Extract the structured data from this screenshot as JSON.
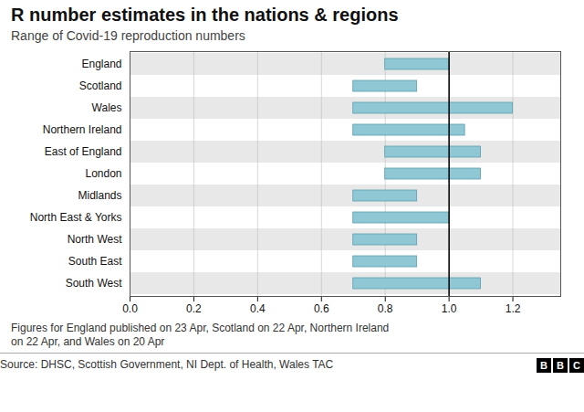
{
  "chart_data": {
    "type": "bar",
    "orientation": "horizontal",
    "title": "R number estimates in the nations & regions",
    "subtitle": "Range of Covid-19 reproduction numbers",
    "categories": [
      "England",
      "Scotland",
      "Wales",
      "Northern Ireland",
      "East of England",
      "London",
      "Midlands",
      "North East & Yorks",
      "North West",
      "South East",
      "South West"
    ],
    "low": [
      0.8,
      0.7,
      0.7,
      0.7,
      0.8,
      0.8,
      0.7,
      0.7,
      0.7,
      0.7,
      0.7
    ],
    "high": [
      1.0,
      0.9,
      1.2,
      1.05,
      1.1,
      1.1,
      0.9,
      1.0,
      0.9,
      0.9,
      1.1
    ],
    "color": "#8fc8d4",
    "reference_line": 1.0,
    "xlim": [
      0.0,
      1.35
    ],
    "xticks": [
      {
        "value": 0.0,
        "label": "0.0"
      },
      0.2,
      0.4,
      0.6,
      0.8,
      {
        "value": 1.0,
        "label": "1.0"
      },
      1.2
    ],
    "grid": true,
    "footnote": "Figures for England published on 23 Apr, Scotland on 22 Apr, Northern Ireland\non 22 Apr, and Wales on 20 Apr",
    "source": "Source: DHSC, Scottish Government, NI Dept. of Health, Wales TAC",
    "logo": "BBC"
  }
}
